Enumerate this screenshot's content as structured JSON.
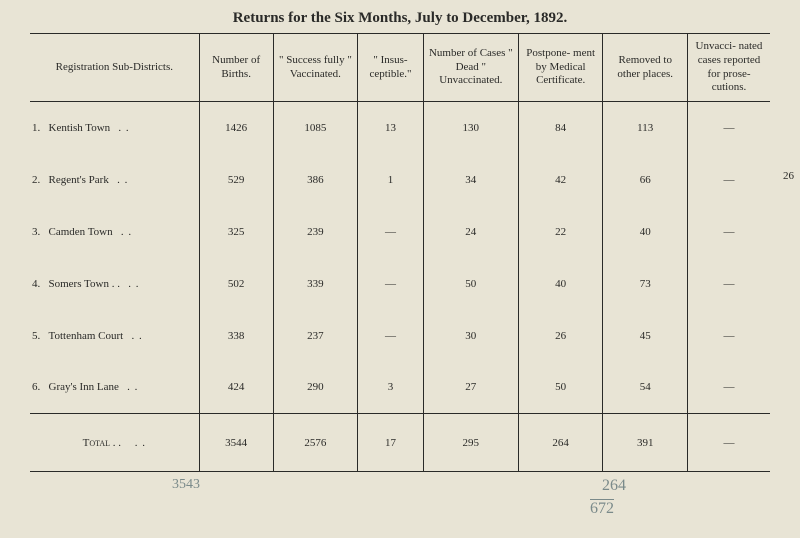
{
  "title": "Returns for the Six Months, July to December, 1892.",
  "side_page_number": "26",
  "columns": {
    "c1": "Registration Sub-Districts.",
    "c2": "Number of Births.",
    "c3": "\" Success fully \" Vaccinated.",
    "c4": "\" Insus- ceptible.\"",
    "c5": "Number of Cases \" Dead \" Unvaccinated.",
    "c6": "Postpone- ment by Medical Certificate.",
    "c7": "Removed to other places.",
    "c8": "Unvacci- nated cases reported for prose- cutions."
  },
  "rows": [
    {
      "idx": "1.",
      "name": "Kentish Town",
      "births": "1426",
      "success": "1085",
      "insus": "13",
      "dead": "130",
      "postpone": "84",
      "removed": "113",
      "unvac": "—"
    },
    {
      "idx": "2.",
      "name": "Regent's Park",
      "births": "529",
      "success": "386",
      "insus": "1",
      "dead": "34",
      "postpone": "42",
      "removed": "66",
      "unvac": "—"
    },
    {
      "idx": "3.",
      "name": "Camden Town",
      "births": "325",
      "success": "239",
      "insus": "—",
      "dead": "24",
      "postpone": "22",
      "removed": "40",
      "unvac": "—"
    },
    {
      "idx": "4.",
      "name": "Somers Town . .",
      "births": "502",
      "success": "339",
      "insus": "—",
      "dead": "50",
      "postpone": "40",
      "removed": "73",
      "unvac": "—"
    },
    {
      "idx": "5.",
      "name": "Tottenham Court",
      "births": "338",
      "success": "237",
      "insus": "—",
      "dead": "30",
      "postpone": "26",
      "removed": "45",
      "unvac": "—"
    },
    {
      "idx": "6.",
      "name": "Gray's Inn Lane",
      "births": "424",
      "success": "290",
      "insus": "3",
      "dead": "27",
      "postpone": "50",
      "removed": "54",
      "unvac": "—"
    }
  ],
  "total": {
    "label": "Total  . .",
    "births": "3544",
    "success": "2576",
    "insus": "17",
    "dead": "295",
    "postpone": "264",
    "removed": "391",
    "unvac": "—"
  },
  "col_widths": [
    "160",
    "70",
    "80",
    "62",
    "90",
    "80",
    "80",
    "78"
  ],
  "handwriting": {
    "h1": "3543",
    "h2": "264",
    "h3": "672"
  },
  "colors": {
    "bg": "#e8e4d5",
    "ink": "#2a2a28",
    "pencil": "#7a8a8a"
  }
}
